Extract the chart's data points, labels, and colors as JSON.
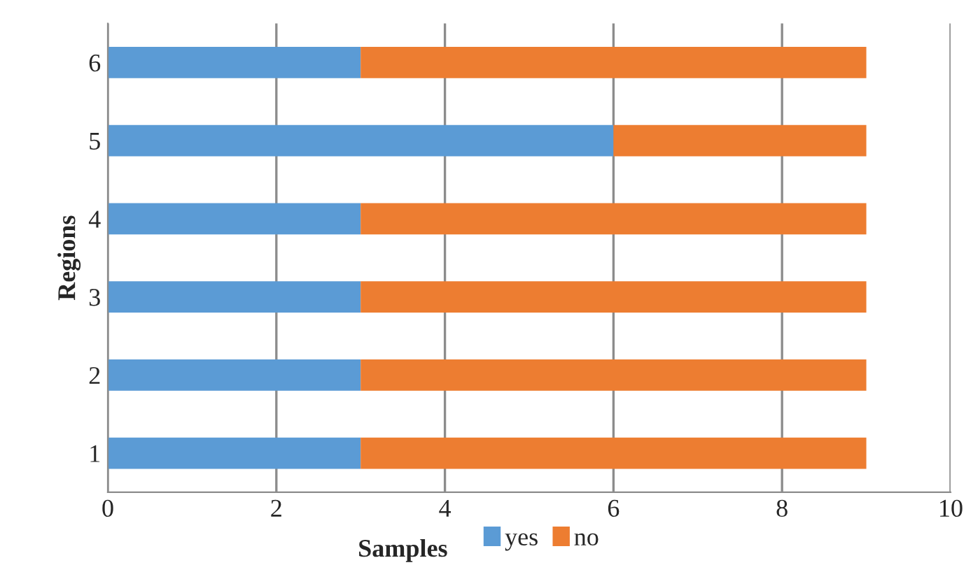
{
  "chart_data": {
    "type": "bar",
    "orientation": "horizontal",
    "stacked": true,
    "categories": [
      "6",
      "5",
      "4",
      "3",
      "2",
      "1"
    ],
    "series": [
      {
        "name": "yes",
        "color": "#5b9bd5",
        "values": [
          3,
          6,
          3,
          3,
          3,
          3
        ]
      },
      {
        "name": "no",
        "color": "#ed7d31",
        "values": [
          6,
          3,
          6,
          6,
          6,
          6
        ]
      }
    ],
    "xlabel": "Samples",
    "ylabel": "Regions",
    "xlim": [
      0,
      10
    ],
    "xticks": [
      0,
      2,
      4,
      6,
      8,
      10
    ],
    "grid": "x",
    "legend": "bottom"
  }
}
